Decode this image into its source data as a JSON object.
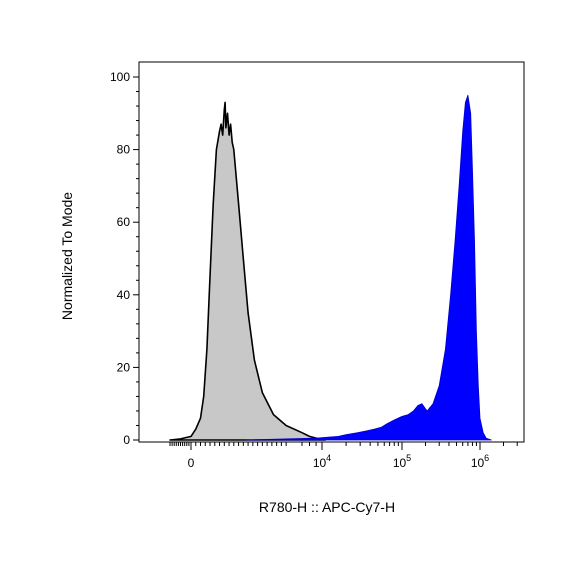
{
  "chart_data": {
    "type": "area",
    "title": "",
    "xlabel": "R780-H :: APC-Cy7-H",
    "ylabel": "Normalized To Mode",
    "x_scale": "biexponential",
    "x_ticks": [
      {
        "value": 0,
        "label": "0",
        "exp": ""
      },
      {
        "value": 10000,
        "label": "10",
        "exp": "4"
      },
      {
        "value": 100000,
        "label": "10",
        "exp": "5"
      },
      {
        "value": 1000000,
        "label": "10",
        "exp": "6"
      }
    ],
    "ylim": [
      0,
      100
    ],
    "y_ticks": [
      "0",
      "20",
      "40",
      "60",
      "80",
      "100"
    ],
    "grid": false,
    "legend": "none",
    "series": [
      {
        "fill": "#c8c8c8",
        "stroke": "#000000",
        "x": [
          -3000,
          -1500,
          0,
          300,
          600,
          800,
          1000,
          1200,
          1400,
          1600,
          1800,
          1900,
          2000,
          2100,
          2150,
          2200,
          2300,
          2400,
          2500,
          2600,
          2700,
          2800,
          3000,
          3300,
          3600,
          4000,
          4500,
          5200,
          6000,
          7000,
          8000,
          9000,
          10000,
          11000
        ],
        "y": [
          0,
          0.3,
          1,
          3,
          6,
          12,
          25,
          45,
          65,
          80,
          85,
          87,
          84,
          91,
          93,
          86,
          90,
          84,
          87,
          82,
          80,
          75,
          65,
          50,
          35,
          22,
          13,
          7,
          4,
          2,
          1,
          0.5,
          0.2,
          0
        ]
      },
      {
        "fill": "#0000ff",
        "stroke": "#0000cc",
        "x": [
          3500,
          6000,
          9000,
          12000,
          16000,
          20000,
          28000,
          36000,
          45000,
          55000,
          65000,
          80000,
          100000,
          120000,
          140000,
          160000,
          180000,
          210000,
          250000,
          300000,
          360000,
          420000,
          480000,
          540000,
          600000,
          650000,
          700000,
          760000,
          800000,
          850000,
          900000,
          950000,
          1000000,
          1100000,
          1200000,
          1400000
        ],
        "y": [
          0,
          0.3,
          0.5,
          0.8,
          1,
          1.5,
          2,
          2.5,
          3,
          3.5,
          4.5,
          5.5,
          6.5,
          7,
          8,
          9.5,
          10,
          8,
          10,
          15,
          25,
          40,
          55,
          70,
          85,
          93,
          95,
          90,
          75,
          55,
          30,
          15,
          6,
          2,
          0.5,
          0
        ]
      }
    ]
  }
}
